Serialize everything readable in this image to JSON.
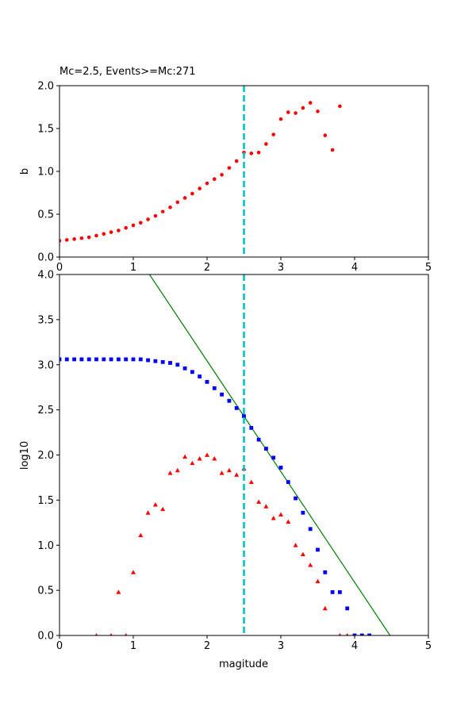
{
  "chart_data": [
    {
      "type": "scatter",
      "title": "Mc=2.5, Events>=Mc:271",
      "xlabel": "",
      "ylabel": "b",
      "xlim": [
        0,
        5
      ],
      "ylim": [
        0,
        2.0
      ],
      "xticks": [
        "0",
        "1",
        "2",
        "3",
        "4",
        "5"
      ],
      "yticks": [
        "0.0",
        "0.5",
        "1.0",
        "1.5",
        "2.0"
      ],
      "mc_line": {
        "x": 2.5,
        "color": "#00bfbf"
      },
      "series": [
        {
          "marker": "circle",
          "color": "#ff0000",
          "x": [
            0.0,
            0.1,
            0.2,
            0.3,
            0.4,
            0.5,
            0.6,
            0.7,
            0.8,
            0.9,
            1.0,
            1.1,
            1.2,
            1.3,
            1.4,
            1.5,
            1.6,
            1.7,
            1.8,
            1.9,
            2.0,
            2.1,
            2.2,
            2.3,
            2.4,
            2.5,
            2.6,
            2.7,
            2.8,
            2.9,
            3.0,
            3.1,
            3.2,
            3.3,
            3.4,
            3.5,
            3.6,
            3.7,
            3.8
          ],
          "y": [
            0.19,
            0.2,
            0.21,
            0.22,
            0.23,
            0.25,
            0.27,
            0.29,
            0.31,
            0.34,
            0.37,
            0.4,
            0.44,
            0.48,
            0.53,
            0.58,
            0.64,
            0.69,
            0.74,
            0.8,
            0.86,
            0.91,
            0.96,
            1.04,
            1.12,
            1.22,
            1.21,
            1.22,
            1.32,
            1.43,
            1.61,
            1.69,
            1.68,
            1.74,
            1.8,
            1.7,
            1.42,
            1.25,
            1.76
          ]
        }
      ]
    },
    {
      "type": "scatter",
      "title": "",
      "xlabel": "magitude",
      "ylabel": "log10",
      "xlim": [
        0,
        5
      ],
      "ylim": [
        0,
        4.0
      ],
      "xticks": [
        "0",
        "1",
        "2",
        "3",
        "4",
        "5"
      ],
      "yticks": [
        "0.0",
        "0.5",
        "1.0",
        "1.5",
        "2.0",
        "2.5",
        "3.0",
        "3.5",
        "4.0"
      ],
      "mc_line": {
        "x": 2.5,
        "color": "#00bfbf"
      },
      "fit_line": {
        "x": [
          1.22,
          4.48
        ],
        "y": [
          4.0,
          0.0
        ],
        "color": "#008000"
      },
      "series": [
        {
          "marker": "square",
          "color": "#0000ff",
          "x": [
            0.0,
            0.1,
            0.2,
            0.3,
            0.4,
            0.5,
            0.6,
            0.7,
            0.8,
            0.9,
            1.0,
            1.1,
            1.2,
            1.3,
            1.4,
            1.5,
            1.6,
            1.7,
            1.8,
            1.9,
            2.0,
            2.1,
            2.2,
            2.3,
            2.4,
            2.5,
            2.6,
            2.7,
            2.8,
            2.9,
            3.0,
            3.1,
            3.2,
            3.3,
            3.4,
            3.5,
            3.6,
            3.7,
            3.8,
            3.9,
            4.0,
            4.1,
            4.2
          ],
          "y": [
            3.06,
            3.06,
            3.06,
            3.06,
            3.06,
            3.06,
            3.06,
            3.06,
            3.06,
            3.06,
            3.06,
            3.06,
            3.05,
            3.04,
            3.03,
            3.02,
            3.0,
            2.96,
            2.92,
            2.87,
            2.81,
            2.74,
            2.67,
            2.6,
            2.52,
            2.43,
            2.3,
            2.17,
            2.07,
            1.97,
            1.86,
            1.7,
            1.52,
            1.36,
            1.18,
            0.95,
            0.7,
            0.48,
            0.48,
            0.3,
            0.0,
            0.0,
            0.0
          ]
        },
        {
          "marker": "triangle",
          "color": "#ff0000",
          "x": [
            0.5,
            0.7,
            0.8,
            0.9,
            1.0,
            1.1,
            1.2,
            1.3,
            1.4,
            1.5,
            1.6,
            1.7,
            1.8,
            1.9,
            2.0,
            2.1,
            2.2,
            2.3,
            2.4,
            2.5,
            2.6,
            2.7,
            2.8,
            2.9,
            3.0,
            3.1,
            3.2,
            3.3,
            3.4,
            3.5,
            3.6,
            3.8,
            3.9
          ],
          "y": [
            0.0,
            0.0,
            0.48,
            0.0,
            0.7,
            1.11,
            1.36,
            1.45,
            1.4,
            1.8,
            1.83,
            1.98,
            1.91,
            1.96,
            2.0,
            1.96,
            1.8,
            1.83,
            1.78,
            1.85,
            1.7,
            1.48,
            1.43,
            1.3,
            1.34,
            1.26,
            1.0,
            0.9,
            0.78,
            0.6,
            0.3,
            0.0,
            0.0
          ]
        }
      ]
    }
  ]
}
